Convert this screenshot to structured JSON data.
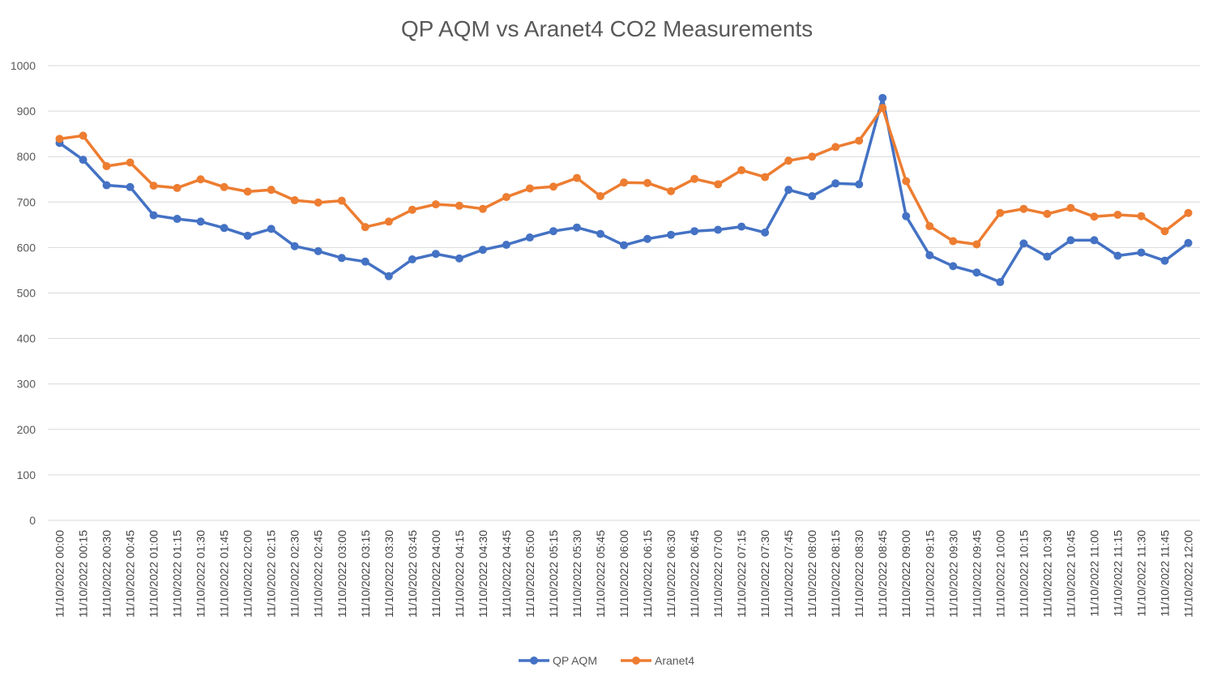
{
  "chart_data": {
    "type": "line",
    "title": "QP AQM vs Aranet4 CO2 Measurements",
    "xlabel": "",
    "ylabel": "",
    "ylim": [
      0,
      1000
    ],
    "yticks": [
      0,
      100,
      200,
      300,
      400,
      500,
      600,
      700,
      800,
      900,
      1000
    ],
    "grid": true,
    "legend_position": "bottom",
    "categories": [
      "11/10/2022 00:00",
      "11/10/2022 00:15",
      "11/10/2022 00:30",
      "11/10/2022 00:45",
      "11/10/2022 01:00",
      "11/10/2022 01:15",
      "11/10/2022 01:30",
      "11/10/2022 01:45",
      "11/10/2022 02:00",
      "11/10/2022 02:15",
      "11/10/2022 02:30",
      "11/10/2022 02:45",
      "11/10/2022 03:00",
      "11/10/2022 03:15",
      "11/10/2022 03:30",
      "11/10/2022 03:45",
      "11/10/2022 04:00",
      "11/10/2022 04:15",
      "11/10/2022 04:30",
      "11/10/2022 04:45",
      "11/10/2022 05:00",
      "11/10/2022 05:15",
      "11/10/2022 05:30",
      "11/10/2022 05:45",
      "11/10/2022 06:00",
      "11/10/2022 06:15",
      "11/10/2022 06:30",
      "11/10/2022 06:45",
      "11/10/2022 07:00",
      "11/10/2022 07:15",
      "11/10/2022 07:30",
      "11/10/2022 07:45",
      "11/10/2022 08:00",
      "11/10/2022 08:15",
      "11/10/2022 08:30",
      "11/10/2022 08:45",
      "11/10/2022 09:00",
      "11/10/2022 09:15",
      "11/10/2022 09:30",
      "11/10/2022 09:45",
      "11/10/2022 10:00",
      "11/10/2022 10:15",
      "11/10/2022 10:30",
      "11/10/2022 10:45",
      "11/10/2022 11:00",
      "11/10/2022 11:15",
      "11/10/2022 11:30",
      "11/10/2022 11:45",
      "11/10/2022 12:00"
    ],
    "series": [
      {
        "name": "QP AQM",
        "color": "#4472c4",
        "values": [
          830,
          793,
          737,
          733,
          671,
          663,
          657,
          643,
          626,
          641,
          603,
          592,
          577,
          569,
          537,
          574,
          586,
          576,
          595,
          606,
          622,
          636,
          644,
          630,
          605,
          619,
          628,
          636,
          639,
          646,
          633,
          727,
          713,
          741,
          739,
          929,
          669,
          583,
          559,
          545,
          524,
          609,
          580,
          616,
          616,
          582,
          589,
          571,
          610
        ]
      },
      {
        "name": "Aranet4",
        "color": "#ed7d31",
        "values": [
          839,
          846,
          779,
          787,
          736,
          731,
          750,
          733,
          723,
          727,
          704,
          699,
          703,
          645,
          657,
          683,
          695,
          692,
          685,
          711,
          730,
          734,
          753,
          713,
          743,
          742,
          724,
          751,
          739,
          770,
          755,
          791,
          800,
          821,
          835,
          907,
          746,
          647,
          614,
          607,
          676,
          685,
          674,
          687,
          668,
          672,
          669,
          636,
          676
        ]
      }
    ]
  }
}
